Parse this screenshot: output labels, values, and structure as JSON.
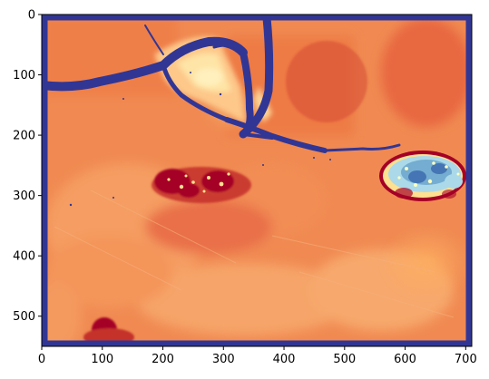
{
  "figure": {
    "colormap": "RdYlBu",
    "colors": {
      "water": "#313695",
      "dark_red": "#a50026",
      "red": "#d73027",
      "orange": "#f46d43",
      "light_orange": "#fdae61",
      "pale_yellow": "#fee090",
      "cream": "#ffffbf",
      "light_blue": "#abd9e9",
      "mid_blue": "#74add1",
      "blue": "#4575b4"
    },
    "x_axis": {
      "range": [
        0,
        710
      ],
      "ticks": [
        {
          "value": 0,
          "label": "0"
        },
        {
          "value": 100,
          "label": "100"
        },
        {
          "value": 200,
          "label": "200"
        },
        {
          "value": 300,
          "label": "300"
        },
        {
          "value": 400,
          "label": "400"
        },
        {
          "value": 500,
          "label": "500"
        },
        {
          "value": 600,
          "label": "600"
        },
        {
          "value": 700,
          "label": "700"
        }
      ]
    },
    "y_axis": {
      "range": [
        0,
        550
      ],
      "ticks": [
        {
          "value": 0,
          "label": "0"
        },
        {
          "value": 100,
          "label": "100"
        },
        {
          "value": 200,
          "label": "200"
        },
        {
          "value": 300,
          "label": "300"
        },
        {
          "value": 400,
          "label": "400"
        },
        {
          "value": 500,
          "label": "500"
        }
      ]
    }
  }
}
